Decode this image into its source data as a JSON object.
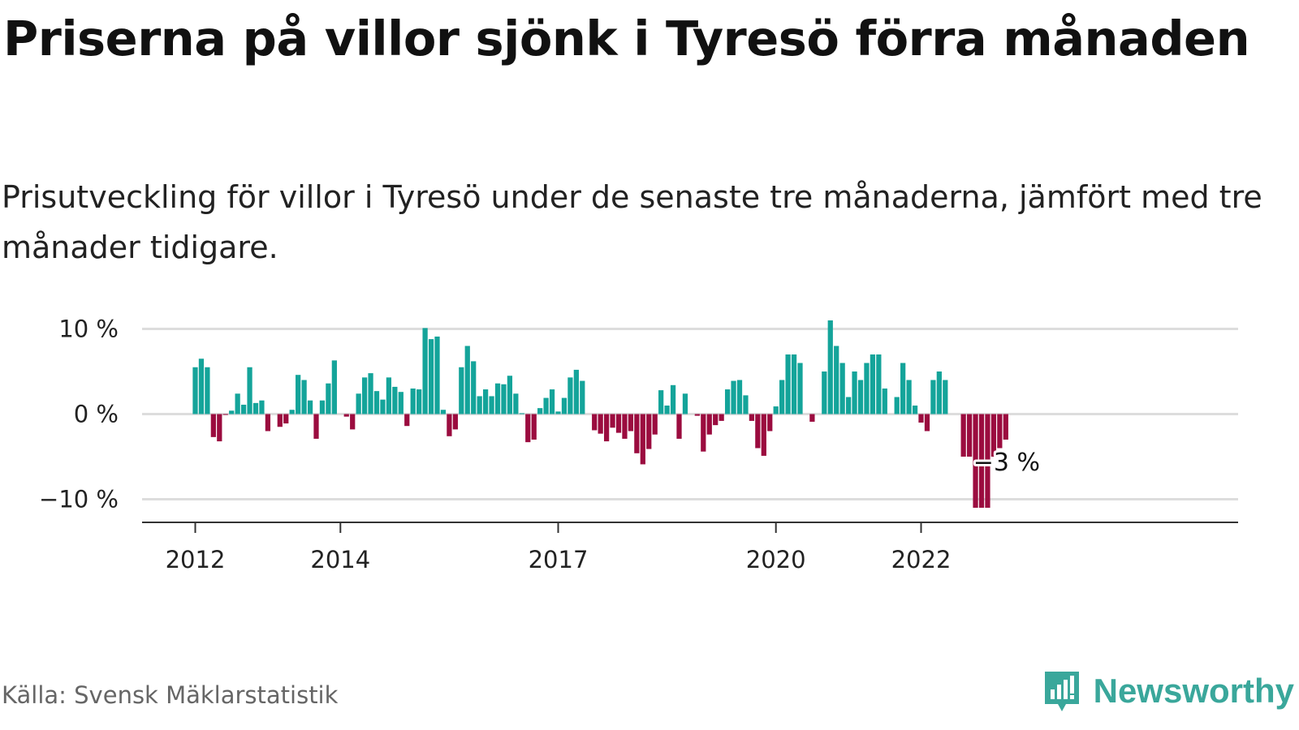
{
  "title": "Priserna på villor sjönk i Tyresö förra månaden",
  "subtitle": "Prisutveckling för villor i Tyresö under de senaste tre månaderna, jämfört med tre månader tidigare.",
  "source": "Källa: Svensk Mäklarstatistik",
  "brand": {
    "name": "Newsworthy",
    "icon": "newsworthy-logo-icon"
  },
  "colors": {
    "positive": "#14a49a",
    "negative": "#9b0c3f",
    "grid": "#dddddd",
    "axis": "#333333",
    "brand": "#3aa79b"
  },
  "chart_data": {
    "type": "bar",
    "title": "",
    "xlabel": "",
    "ylabel": "",
    "x_start": "2012-01",
    "x_end": "2023-03",
    "x_ticks": [
      "2012",
      "2014",
      "2017",
      "2020",
      "2022"
    ],
    "y_ticks": [
      10,
      0,
      -10
    ],
    "y_tick_labels": [
      "10 %",
      "0 %",
      "−10 %"
    ],
    "ylim": [
      -13,
      12.5
    ],
    "grid": true,
    "values": [
      5.5,
      6.5,
      5.5,
      -2.7,
      -3.2,
      -0.1,
      0.4,
      2.4,
      1.1,
      5.5,
      1.3,
      1.6,
      -2.0,
      0.0,
      -1.5,
      -1.1,
      0.5,
      4.6,
      4.0,
      1.6,
      -2.9,
      1.6,
      3.6,
      6.3,
      0.0,
      -0.3,
      -1.8,
      2.4,
      4.3,
      4.8,
      2.7,
      1.7,
      4.3,
      3.2,
      2.6,
      -1.4,
      3.0,
      2.9,
      10.1,
      8.8,
      9.1,
      0.5,
      -2.6,
      -1.8,
      5.5,
      8.0,
      6.2,
      2.1,
      2.9,
      2.1,
      3.6,
      3.5,
      4.5,
      2.4,
      0.1,
      -3.3,
      -3.0,
      0.7,
      1.9,
      2.9,
      0.3,
      1.9,
      4.3,
      5.2,
      3.9,
      0.0,
      -1.9,
      -2.3,
      -3.2,
      -1.6,
      -2.2,
      -2.9,
      -2.0,
      -4.6,
      -5.9,
      -4.1,
      -2.4,
      2.8,
      1.0,
      3.4,
      -2.9,
      2.4,
      0.0,
      -0.2,
      -4.4,
      -2.4,
      -1.3,
      -0.8,
      2.9,
      3.9,
      4.0,
      2.2,
      -0.8,
      -4.0,
      -4.9,
      -2.0,
      0.9,
      4.0,
      7.0,
      7.0,
      6.0,
      0.0,
      -0.9,
      0.0,
      5.0,
      11.0,
      8.0,
      6.0,
      2.0,
      5.0,
      4.0,
      6.0,
      7.0,
      7.0,
      3.0,
      0.0,
      2.0,
      6.0,
      4.0,
      1.0,
      -1.0,
      -2.0,
      4.0,
      5.0,
      4.0,
      0.0,
      0.0,
      -5.0,
      -5.0,
      -11.0,
      -11.0,
      -11.0,
      -5.0,
      -4.0,
      -3.0
    ],
    "annotation": {
      "text": "−3 %",
      "index": 134
    }
  }
}
